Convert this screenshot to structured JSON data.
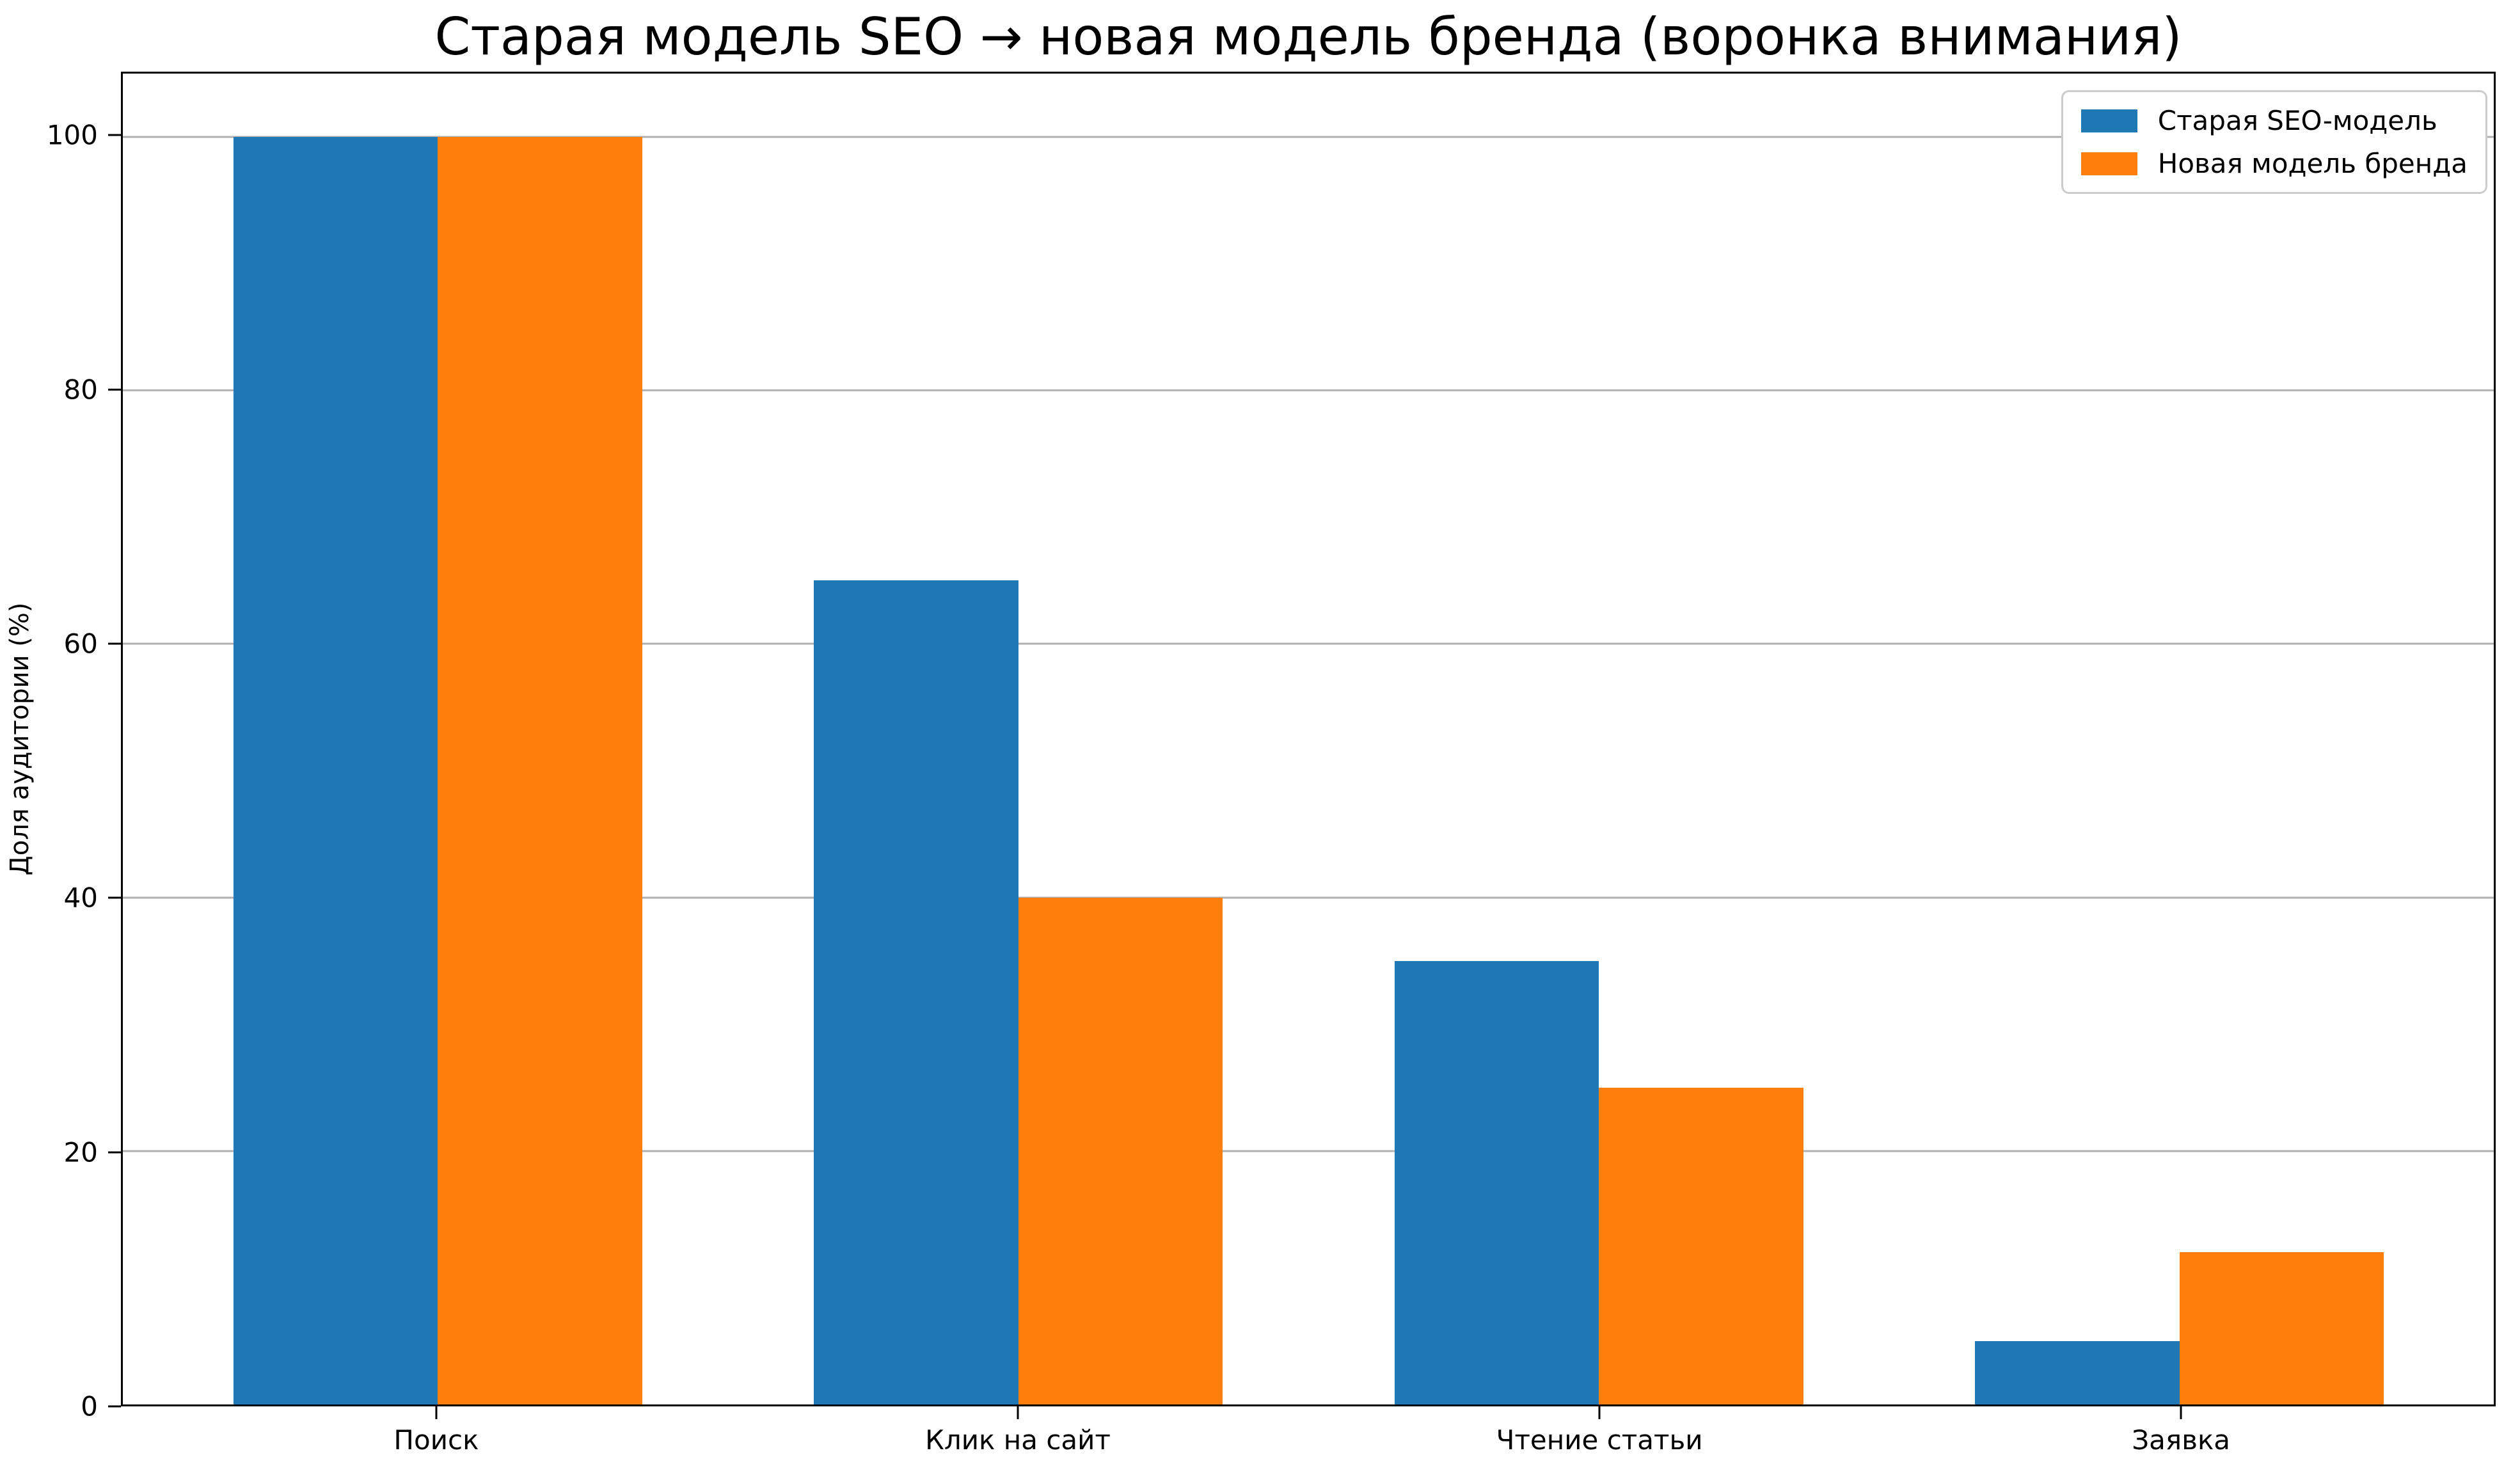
{
  "chart_data": {
    "type": "bar",
    "title": "Старая модель SEO → новая модель бренда (воронка внимания)",
    "ylabel": "Доля аудитории (%)",
    "xlabel": "",
    "categories": [
      "Поиск",
      "Клик на сайт",
      "Чтение статьи",
      "Заявка"
    ],
    "series": [
      {
        "name": "Старая SEO-модель",
        "color": "#1f77b4",
        "values": [
          100,
          65,
          35,
          5
        ]
      },
      {
        "name": "Новая модель бренда",
        "color": "#ff7f0e",
        "values": [
          100,
          40,
          25,
          12
        ]
      }
    ],
    "yticks": [
      0,
      20,
      40,
      60,
      80,
      100
    ],
    "ylim": [
      0,
      105
    ],
    "grid": "horizontal",
    "grid_color": "#b0b0b0",
    "legend_position": "upper right"
  }
}
